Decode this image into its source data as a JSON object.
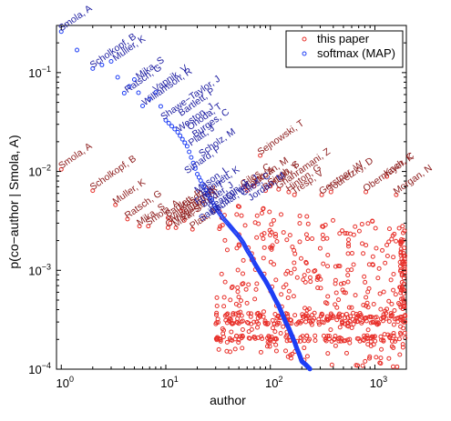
{
  "chart_data": {
    "type": "scatter",
    "title": "",
    "xlabel": "author",
    "ylabel": "p(co−author | Smola, A)",
    "xscale": "log",
    "yscale": "log",
    "xlim": [
      0.9,
      2000
    ],
    "ylim": [
      0.0001,
      0.3
    ],
    "grid": false,
    "legend_position": "top-right",
    "x_ticks": [
      {
        "value": 1,
        "label": "10",
        "exp": "0"
      },
      {
        "value": 10,
        "label": "10",
        "exp": "1"
      },
      {
        "value": 100,
        "label": "10",
        "exp": "2"
      },
      {
        "value": 1000,
        "label": "10",
        "exp": "3"
      }
    ],
    "y_ticks": [
      {
        "value": 0.0001,
        "label": "10",
        "exp": "−4"
      },
      {
        "value": 0.001,
        "label": "10",
        "exp": "−3"
      },
      {
        "value": 0.01,
        "label": "10",
        "exp": "−2"
      },
      {
        "value": 0.1,
        "label": "10",
        "exp": "−1"
      }
    ],
    "colors": {
      "this_paper": "#e8302a",
      "softmax": "#1f3ff5",
      "label_red": "#8b1a1a",
      "label_blue": "#1a1aa0"
    },
    "series": [
      {
        "name": "this paper",
        "color": "#e8302a",
        "marker": "circle-open"
      },
      {
        "name": "softmax (MAP)",
        "color": "#1f3ff5",
        "marker": "circle-open"
      }
    ],
    "annotations_red": [
      {
        "text": "Smola, A",
        "x": 1.0,
        "y": 0.0105
      },
      {
        "text": "Scholkopf, B",
        "x": 2.0,
        "y": 0.0064
      },
      {
        "text": "Muller, K",
        "x": 3.3,
        "y": 0.0046
      },
      {
        "text": "Ratsch, G",
        "x": 4.3,
        "y": 0.0033
      },
      {
        "text": "Mika, S",
        "x": 5.6,
        "y": 0.0028
      },
      {
        "text": "Smola, A",
        "x": 6.8,
        "y": 0.0028
      },
      {
        "text": "Bartlett, P",
        "x": 10.5,
        "y": 0.0034
      },
      {
        "text": "Williamson, R",
        "x": 11.0,
        "y": 0.003
      },
      {
        "text": "Christianini, N",
        "x": 10.5,
        "y": 0.0027
      },
      {
        "text": "Mason, L",
        "x": 14.0,
        "y": 0.004
      },
      {
        "text": "Weston, J",
        "x": 15.0,
        "y": 0.0032
      },
      {
        "text": "Mika, S",
        "x": 12.5,
        "y": 0.0027
      },
      {
        "text": "Platt, J",
        "x": 18.0,
        "y": 0.0026
      },
      {
        "text": "Sejnowski, T",
        "x": 80,
        "y": 0.0145
      },
      {
        "text": "Jordan, M",
        "x": 70,
        "y": 0.0071
      },
      {
        "text": "Barto, A",
        "x": 60,
        "y": 0.0064
      },
      {
        "text": "Giles, C",
        "x": 55,
        "y": 0.0069
      },
      {
        "text": "Bengio, Y",
        "x": 90,
        "y": 0.0064
      },
      {
        "text": "Singh, S",
        "x": 100,
        "y": 0.0071
      },
      {
        "text": "Ghahramani, Z",
        "x": 120,
        "y": 0.0066
      },
      {
        "text": "Hinton, G",
        "x": 150,
        "y": 0.0062
      },
      {
        "text": "Tresp, V",
        "x": 170,
        "y": 0.0058
      },
      {
        "text": "Gerstner, W",
        "x": 310,
        "y": 0.0058
      },
      {
        "text": "Touretzky, D",
        "x": 380,
        "y": 0.0062
      },
      {
        "text": "Obermayer, K",
        "x": 820,
        "y": 0.0062
      },
      {
        "text": "Koch, C",
        "x": 1300,
        "y": 0.0089
      },
      {
        "text": "Morgan, N",
        "x": 1600,
        "y": 0.0058
      }
    ],
    "annotations_blue": [
      {
        "text": "Smola, A",
        "x": 1.0,
        "y": 0.26
      },
      {
        "text": "Scholkopf, B",
        "x": 2.0,
        "y": 0.11
      },
      {
        "text": "Muller, K",
        "x": 3.3,
        "y": 0.13
      },
      {
        "text": "Mika, S",
        "x": 5.5,
        "y": 0.085
      },
      {
        "text": "Ratsch, G",
        "x": 4.3,
        "y": 0.062
      },
      {
        "text": "Vapnik, V",
        "x": 8.0,
        "y": 0.063
      },
      {
        "text": "Williamson, R",
        "x": 6.3,
        "y": 0.046
      },
      {
        "text": "Bartlett, P",
        "x": 14.0,
        "y": 0.036
      },
      {
        "text": "Shawe−Taylor, J",
        "x": 9.5,
        "y": 0.033
      },
      {
        "text": "Weston, J",
        "x": 13.5,
        "y": 0.025
      },
      {
        "text": "Onoda, T",
        "x": 17.0,
        "y": 0.026
      },
      {
        "text": "Burges, C",
        "x": 19.0,
        "y": 0.022
      },
      {
        "text": "Platt, J",
        "x": 17.5,
        "y": 0.018
      },
      {
        "text": "Scholz, M",
        "x": 22.0,
        "y": 0.014
      },
      {
        "text": "Simard, P",
        "x": 16.0,
        "y": 0.0094
      },
      {
        "text": "Mason, L",
        "x": 20.0,
        "y": 0.006
      },
      {
        "text": "Bennett, K",
        "x": 23.0,
        "y": 0.0056
      },
      {
        "text": "Frieß, T",
        "x": 20.0,
        "y": 0.0046
      },
      {
        "text": "Baxter, J",
        "x": 23.0,
        "y": 0.0043
      },
      {
        "text": "Pearson, J",
        "x": 27.0,
        "y": 0.004
      },
      {
        "text": "Saida, J",
        "x": 22.0,
        "y": 0.0031
      },
      {
        "text": "Bednar, J",
        "x": 28.0,
        "y": 0.0036
      },
      {
        "text": "Olivier, J",
        "x": 40.0,
        "y": 0.0051
      },
      {
        "text": "Giles, C",
        "x": 55.0,
        "y": 0.0056
      },
      {
        "text": "Jordan, M",
        "x": 65.0,
        "y": 0.005
      }
    ],
    "softmax_curve": [
      [
        1,
        0.26
      ],
      [
        2,
        0.11
      ],
      [
        3,
        0.13
      ],
      [
        4,
        0.062
      ],
      [
        5,
        0.085
      ],
      [
        6,
        0.046
      ],
      [
        8,
        0.063
      ],
      [
        10,
        0.033
      ],
      [
        13,
        0.025
      ],
      [
        16,
        0.018
      ],
      [
        20,
        0.0094
      ],
      [
        25,
        0.006
      ],
      [
        30,
        0.0043
      ],
      [
        35,
        0.0034
      ],
      [
        40,
        0.0029
      ],
      [
        45,
        0.0025
      ],
      [
        50,
        0.0022
      ],
      [
        55,
        0.0019
      ],
      [
        60,
        0.0016
      ],
      [
        65,
        0.0014
      ],
      [
        70,
        0.0012
      ],
      [
        80,
        0.00095
      ],
      [
        90,
        0.00078
      ],
      [
        100,
        0.00064
      ],
      [
        110,
        0.00052
      ],
      [
        120,
        0.00044
      ],
      [
        130,
        0.00036
      ],
      [
        140,
        0.0003
      ],
      [
        150,
        0.00026
      ],
      [
        160,
        0.00022
      ],
      [
        170,
        0.00019
      ],
      [
        180,
        0.00016
      ],
      [
        190,
        0.00014
      ],
      [
        200,
        0.00012
      ],
      [
        220,
        0.00011
      ],
      [
        240,
        0.0001
      ]
    ]
  },
  "legend": {
    "entries": [
      "this paper",
      "softmax (MAP)"
    ]
  }
}
